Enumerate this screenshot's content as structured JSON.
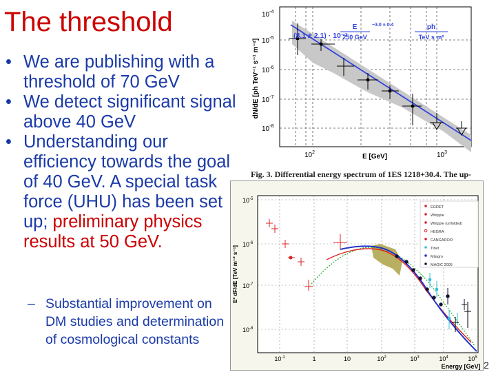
{
  "slide": {
    "title": "The threshold",
    "bullets": [
      "We are publishing with a threshold of 70 GeV",
      "We detect significant signal above 40 GeV"
    ],
    "bullet3_main": "Understanding our efficiency towards the goal of 40 GeV. A special task force (UHU) has been set up;",
    "bullet3_red": "preliminary physics results at 50 GeV.",
    "sub_bullet": "Substantial improvement on DM studies and determination of cosmological constants",
    "page_number": "2"
  },
  "figure_top": {
    "caption": "Fig. 3. Differential energy spectrum of 1ES 1218+30.4. The up-",
    "y_label": "dN/dE [ph TeV⁻¹ s⁻¹ m⁻²]",
    "x_label": "E [GeV]",
    "formula_prefix": "(8.1 ± 2.1) · 10⁻⁷",
    "formula_frac_num": "E",
    "formula_frac_den": "250 GeV",
    "formula_exponent": "−3.0 ± 0.4",
    "formula_unit_num": "ph",
    "formula_unit_den": "TeV s m²",
    "y_ticks": [
      {
        "base": "10",
        "exp": "-4"
      },
      {
        "base": "10",
        "exp": "-5"
      },
      {
        "base": "10",
        "exp": "-6"
      },
      {
        "base": "10",
        "exp": "-7"
      },
      {
        "base": "10",
        "exp": "-8"
      }
    ],
    "x_ticks": [
      {
        "base": "10",
        "exp": "2"
      },
      {
        "base": "10",
        "exp": "3"
      }
    ],
    "colors": {
      "fit_line": "#3344dd",
      "band": "#c8c8c8"
    }
  },
  "figure_bottom": {
    "y_label": "E² dF/dE [TeV m⁻² s⁻¹]",
    "x_label": "Energy [GeV]",
    "y_ticks": [
      {
        "base": "10",
        "exp": "-5"
      },
      {
        "base": "10",
        "exp": "-6"
      },
      {
        "base": "10",
        "exp": "-7"
      },
      {
        "base": "10",
        "exp": "-8"
      }
    ],
    "x_ticks": [
      {
        "base": "10",
        "exp": "-1"
      },
      {
        "base": "1",
        "exp": ""
      },
      {
        "base": "10",
        "exp": ""
      },
      {
        "base": "10",
        "exp": "2"
      },
      {
        "base": "10",
        "exp": "3"
      },
      {
        "base": "10",
        "exp": "4"
      },
      {
        "base": "10",
        "exp": "5"
      }
    ],
    "legend": [
      "EGRET",
      "Whipple",
      "Whipple (unfolded)",
      "HEGRA",
      "CANGAROO",
      "Tibet",
      "Milagro",
      "MAGIC 2005"
    ],
    "colors": {
      "red_points": "#dd2222",
      "band": "#b8b060",
      "model": "#2233cc",
      "red_model": "#dd2222",
      "green_model": "#22aa22",
      "cyan_points": "#33bbdd",
      "magic_points": "#111133"
    }
  }
}
